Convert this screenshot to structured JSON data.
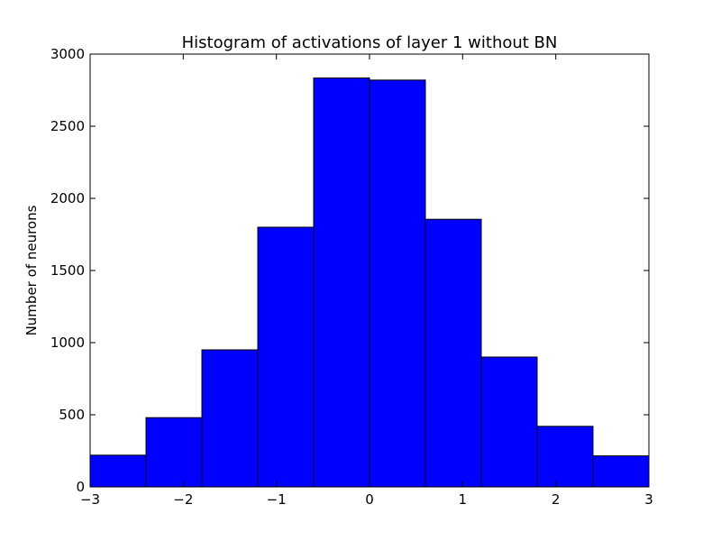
{
  "chart_data": {
    "type": "bar",
    "title": "Histogram of activations of layer 1  without BN",
    "xlabel": "",
    "ylabel": "Number of neurons",
    "xlim": [
      -3,
      3
    ],
    "ylim": [
      0,
      3000
    ],
    "bin_edges": [
      -3,
      -2.4,
      -1.8,
      -1.2,
      -0.6,
      0,
      0.6,
      1.2,
      1.8,
      2.4,
      3
    ],
    "values": [
      220,
      480,
      950,
      1800,
      2835,
      2820,
      1855,
      900,
      420,
      215
    ],
    "x_ticks": [
      -3,
      -2,
      -1,
      0,
      1,
      2,
      3
    ],
    "x_tick_labels": [
      "−3",
      "−2",
      "−1",
      "0",
      "1",
      "2",
      "3"
    ],
    "y_ticks": [
      0,
      500,
      1000,
      1500,
      2000,
      2500,
      3000
    ],
    "y_tick_labels": [
      "0",
      "500",
      "1000",
      "1500",
      "2000",
      "2500",
      "3000"
    ],
    "grid": false,
    "bar_color": "#0000ff"
  }
}
